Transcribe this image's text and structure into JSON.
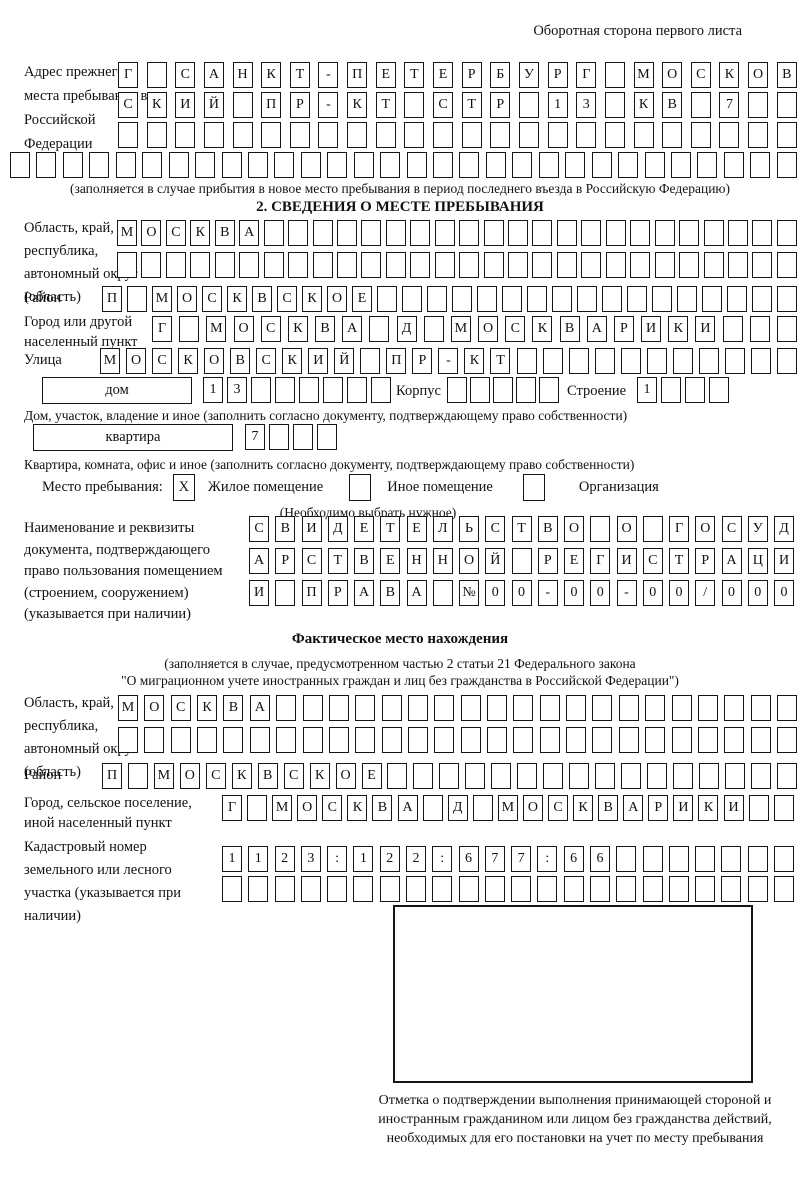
{
  "theme": {
    "ink": "#111111",
    "background": "#ffffff"
  },
  "page_title": "Оборотная сторона первого листа",
  "prev_address": {
    "label": "Адрес прежнего места пребывания в Российской Федерации",
    "rows": [
      [
        "Г",
        "",
        "С",
        "А",
        "Н",
        "К",
        "Т",
        "-",
        "П",
        "Е",
        "Т",
        "Е",
        "Р",
        "Б",
        "У",
        "Р",
        "Г",
        "",
        "М",
        "О",
        "С",
        "К",
        "О",
        "В"
      ],
      [
        "С",
        "К",
        "И",
        "Й",
        "",
        "П",
        "Р",
        "-",
        "К",
        "Т",
        "",
        "С",
        "Т",
        "Р",
        "",
        "1",
        "3",
        "",
        "К",
        "В",
        "",
        "7",
        "",
        ""
      ],
      24,
      30
    ],
    "note": "(заполняется в случае прибытия в новое место пребывания в период последнего въезда в Российскую Федерацию)"
  },
  "section2": {
    "heading": "2. СВЕДЕНИЯ О МЕСТЕ ПРЕБЫВАНИЯ",
    "region": {
      "label": "Область, край, республика, автономный округ (область)",
      "rows": [
        [
          "М",
          "О",
          "С",
          "К",
          "В",
          "А",
          "",
          "",
          "",
          "",
          "",
          "",
          "",
          "",
          "",
          "",
          "",
          "",
          "",
          "",
          "",
          "",
          "",
          "",
          "",
          "",
          "",
          ""
        ],
        28
      ]
    },
    "district": {
      "label": "Район",
      "row": [
        "П",
        "",
        "М",
        "О",
        "С",
        "К",
        "В",
        "С",
        "К",
        "О",
        "Е",
        "",
        "",
        "",
        "",
        "",
        "",
        "",
        "",
        "",
        "",
        "",
        "",
        "",
        "",
        "",
        "",
        ""
      ]
    },
    "city": {
      "label": "Город или другой населенный пункт",
      "row": [
        "Г",
        "",
        "М",
        "О",
        "С",
        "К",
        "В",
        "А",
        "",
        "Д",
        "",
        "М",
        "О",
        "С",
        "К",
        "В",
        "А",
        "Р",
        "И",
        "К",
        "И",
        "",
        "",
        ""
      ]
    },
    "street": {
      "label": "Улица",
      "row": [
        "М",
        "О",
        "С",
        "К",
        "О",
        "В",
        "С",
        "К",
        "И",
        "Й",
        "",
        "П",
        "Р",
        "-",
        "К",
        "Т",
        "",
        "",
        "",
        "",
        "",
        "",
        "",
        "",
        "",
        "",
        ""
      ]
    },
    "house": {
      "box_label": "дом",
      "cells": [
        "1",
        "3",
        "",
        "",
        "",
        "",
        "",
        ""
      ],
      "korpus_label": "Корпус",
      "korpus_cells": 5,
      "stroenie_label": "Строение",
      "stroenie_cells": [
        "1",
        "",
        "",
        ""
      ]
    },
    "house_note": "Дом, участок, владение и иное (заполнить согласно документу, подтверждающему право собственности)",
    "apartment": {
      "box_label": "квартира",
      "cells": [
        "7",
        "",
        "",
        ""
      ]
    },
    "apartment_note": "Квартира, комната, офис и иное (заполнить согласно документу, подтверждающему право собственности)",
    "stay_type": {
      "label": "Место пребывания:",
      "options": [
        {
          "label": "Жилое помещение",
          "mark": "X"
        },
        {
          "label": "Иное помещение",
          "mark": ""
        },
        {
          "label": "Организация",
          "mark": ""
        }
      ],
      "note": "(Необходимо выбрать нужное)"
    },
    "document": {
      "label": "Наименование и реквизиты документа, подтверждающего право пользования помещением (строением, сооружением) (указывается при наличии)",
      "rows": [
        [
          "С",
          "В",
          "И",
          "Д",
          "Е",
          "Т",
          "Е",
          "Л",
          "Ь",
          "С",
          "Т",
          "В",
          "О",
          "",
          "О",
          "",
          "Г",
          "О",
          "С",
          "У",
          "Д"
        ],
        [
          "А",
          "Р",
          "С",
          "Т",
          "В",
          "Е",
          "Н",
          "Н",
          "О",
          "Й",
          "",
          "Р",
          "Е",
          "Г",
          "И",
          "С",
          "Т",
          "Р",
          "А",
          "Ц",
          "И"
        ],
        [
          "И",
          "",
          "П",
          "Р",
          "А",
          "В",
          "А",
          "",
          "№",
          "0",
          "0",
          "-",
          "0",
          "0",
          "-",
          "0",
          "0",
          "/",
          "0",
          "0",
          "0"
        ]
      ]
    }
  },
  "actual_location": {
    "heading": "Фактическое место нахождения",
    "note_line1": "(заполняется в случае, предусмотренном частью 2 статьи 21 Федерального закона",
    "note_line2": "\"О миграционном учете иностранных граждан и лиц без гражданства в Российской Федерации\")",
    "region": {
      "label": "Область, край, республика, автономный округ (область)",
      "rows": [
        [
          "М",
          "О",
          "С",
          "К",
          "В",
          "А",
          "",
          "",
          "",
          "",
          "",
          "",
          "",
          "",
          "",
          "",
          "",
          "",
          "",
          "",
          "",
          "",
          "",
          "",
          "",
          ""
        ],
        26
      ]
    },
    "district": {
      "label": "Район",
      "row": [
        "П",
        "",
        "М",
        "О",
        "С",
        "К",
        "В",
        "С",
        "К",
        "О",
        "Е",
        "",
        "",
        "",
        "",
        "",
        "",
        "",
        "",
        "",
        "",
        "",
        "",
        "",
        "",
        "",
        ""
      ]
    },
    "city": {
      "label": "Город, сельское поселение, иной населенный пункт",
      "row": [
        "Г",
        "",
        "М",
        "О",
        "С",
        "К",
        "В",
        "А",
        "",
        "Д",
        "",
        "М",
        "О",
        "С",
        "К",
        "В",
        "А",
        "Р",
        "И",
        "К",
        "И",
        "",
        ""
      ]
    },
    "cadastre": {
      "label": "Кадастровый номер земельного или лесного участка (указывается при наличии)",
      "rows": [
        [
          "1",
          "1",
          "2",
          "3",
          ":",
          "1",
          "2",
          "2",
          ":",
          "6",
          "7",
          "7",
          ":",
          "6",
          "6",
          "",
          "",
          "",
          "",
          "",
          "",
          ""
        ],
        22
      ]
    },
    "stamp_caption": "Отметка о подтверждении выполнения принимающей стороной и иностранным гражданином или лицом без гражданства действий, необходимых для его постановки на учет по месту пребывания"
  }
}
